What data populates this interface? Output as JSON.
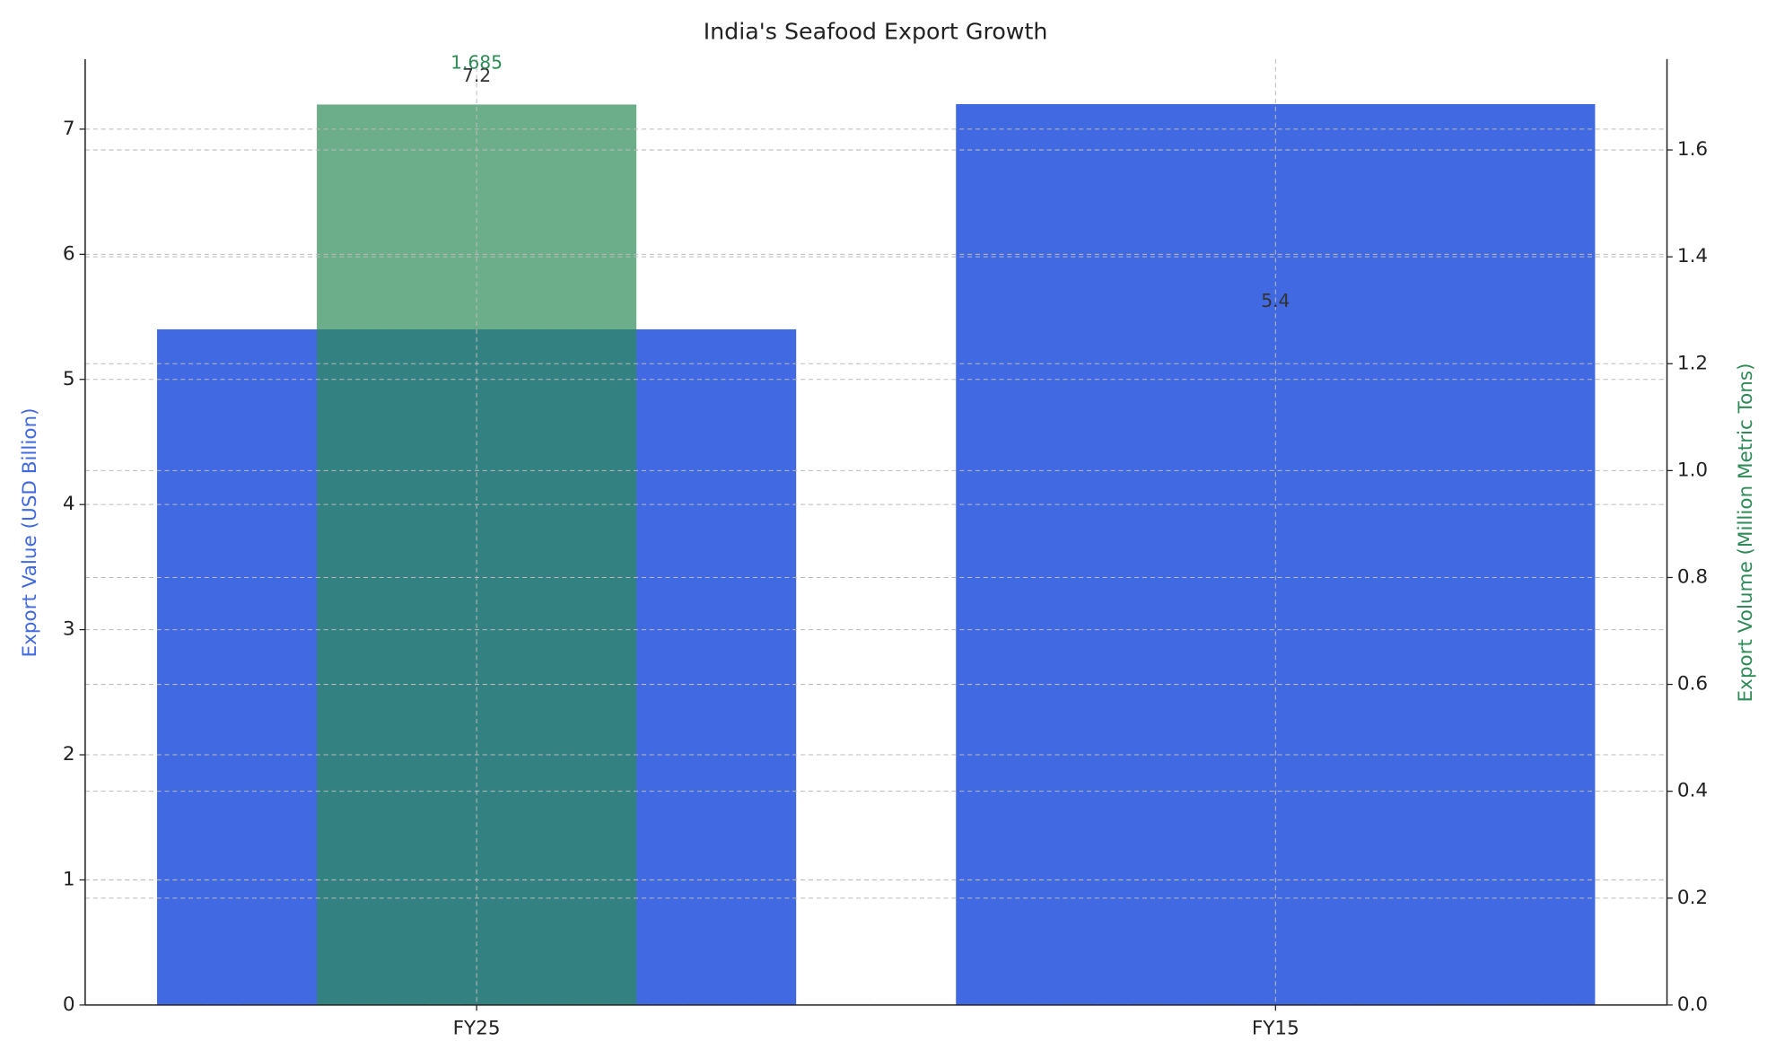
{
  "chart_data": {
    "type": "bar",
    "title": "India's Seafood Export Growth",
    "categories": [
      "FY25",
      "FY15"
    ],
    "y_label": "Export Value (USD Billion)",
    "y2_label": "Export Volume (Million Metric Tons)",
    "series": [
      {
        "name": "Export Value (USD Billion)",
        "color": "#4169e1",
        "values": [
          5.4,
          7.2
        ]
      },
      {
        "name": "Export Volume (Million Metric Tons)",
        "color": "#2e8b57",
        "axis": "y2",
        "values": [
          1.685,
          null
        ]
      }
    ],
    "ylim": [
      0,
      7.56
    ],
    "yticks": [
      0,
      1,
      2,
      3,
      4,
      5,
      6,
      7
    ],
    "y2lim": [
      0,
      1.77
    ],
    "y2ticks": [
      {
        "value": 0,
        "label": "0.0"
      },
      {
        "value": 0.2,
        "label": "0.2"
      },
      {
        "value": 0.4,
        "label": "0.4"
      },
      {
        "value": 0.6,
        "label": "0.6"
      },
      {
        "value": 0.8,
        "label": "0.8"
      },
      {
        "value": 1,
        "label": "1.0"
      },
      {
        "value": 1.2,
        "label": "1.2"
      },
      {
        "value": 1.4,
        "label": "1.4"
      },
      {
        "value": 1.6,
        "label": "1.6"
      }
    ],
    "grid": true
  }
}
